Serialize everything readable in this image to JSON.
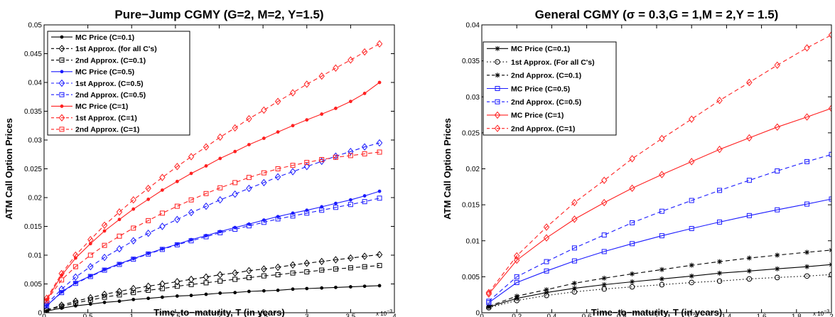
{
  "chart_data": [
    {
      "type": "line",
      "title": "Pure−Jump CGMY (G=2, M=2, Y=1.5)",
      "xlabel": "Time−to−maturity, T (in years)",
      "ylabel": "ATM Call Option Prices",
      "x_multiplier": "x 10",
      "x_multiplier_exp": "−3",
      "xlim": [
        0,
        4
      ],
      "ylim": [
        0,
        0.05
      ],
      "xticks": [
        "0",
        "0.5",
        "1",
        "1.5",
        "2",
        "2.5",
        "3",
        "3.5",
        "4"
      ],
      "yticks": [
        "0",
        "0.005",
        "0.01",
        "0.015",
        "0.02",
        "0.025",
        "0.03",
        "0.035",
        "0.04",
        "0.045",
        "0.05"
      ],
      "grid": false,
      "legend_position": "top-left",
      "x": [
        0.03,
        0.2,
        0.36,
        0.53,
        0.69,
        0.86,
        1.02,
        1.19,
        1.35,
        1.52,
        1.68,
        1.85,
        2.01,
        2.18,
        2.34,
        2.51,
        2.67,
        2.84,
        3.0,
        3.17,
        3.33,
        3.5,
        3.66,
        3.83
      ],
      "series": [
        {
          "name": "MC Price (C=0.1)",
          "color": "#000000",
          "dash": "solid",
          "marker": "dot",
          "values": [
            0.0003,
            0.0008,
            0.0012,
            0.0015,
            0.0018,
            0.002,
            0.0023,
            0.0025,
            0.0027,
            0.0029,
            0.003,
            0.0032,
            0.0034,
            0.0035,
            0.0037,
            0.0038,
            0.0039,
            0.0041,
            0.0042,
            0.0043,
            0.0044,
            0.0045,
            0.0046,
            0.0047
          ]
        },
        {
          "name": "1st Approx. (for all C's)",
          "color": "#000000",
          "dash": "dashed",
          "marker": "diamond",
          "values": [
            0.0005,
            0.0013,
            0.002,
            0.0026,
            0.0032,
            0.0037,
            0.0042,
            0.0046,
            0.005,
            0.0054,
            0.0058,
            0.0062,
            0.0066,
            0.0069,
            0.0073,
            0.0076,
            0.0079,
            0.0083,
            0.0086,
            0.0089,
            0.0092,
            0.0095,
            0.0098,
            0.0101
          ]
        },
        {
          "name": "2nd Approx. (C=0.1)",
          "color": "#000000",
          "dash": "dashed",
          "marker": "square",
          "values": [
            0.0004,
            0.0011,
            0.0017,
            0.0022,
            0.0027,
            0.0031,
            0.0035,
            0.0039,
            0.0042,
            0.0046,
            0.0049,
            0.0052,
            0.0055,
            0.0058,
            0.0061,
            0.0064,
            0.0066,
            0.0069,
            0.0071,
            0.0074,
            0.0076,
            0.0078,
            0.008,
            0.0082
          ]
        },
        {
          "name": "MC Price (C=0.5)",
          "color": "#1a1aff",
          "dash": "solid",
          "marker": "dot",
          "values": [
            0.0012,
            0.0036,
            0.0052,
            0.0064,
            0.0075,
            0.0085,
            0.0094,
            0.0103,
            0.0111,
            0.0119,
            0.0127,
            0.0134,
            0.0141,
            0.0148,
            0.0154,
            0.0161,
            0.0167,
            0.0173,
            0.0178,
            0.0184,
            0.019,
            0.0196,
            0.0203,
            0.0211
          ]
        },
        {
          "name": "1st Approx. (C=0.5)",
          "color": "#1a1aff",
          "dash": "dashed",
          "marker": "diamond",
          "values": [
            0.0015,
            0.0041,
            0.0062,
            0.008,
            0.0096,
            0.0111,
            0.0125,
            0.0138,
            0.015,
            0.0162,
            0.0174,
            0.0185,
            0.0196,
            0.0206,
            0.0216,
            0.0226,
            0.0236,
            0.0245,
            0.0254,
            0.0263,
            0.0272,
            0.028,
            0.0288,
            0.0295
          ]
        },
        {
          "name": "2nd Approx. (C=0.5)",
          "color": "#1a1aff",
          "dash": "dashed",
          "marker": "square",
          "values": [
            0.0012,
            0.0035,
            0.0051,
            0.0063,
            0.0074,
            0.0084,
            0.0093,
            0.0102,
            0.011,
            0.0118,
            0.0125,
            0.0132,
            0.0139,
            0.0145,
            0.0151,
            0.0157,
            0.0163,
            0.0168,
            0.0173,
            0.0178,
            0.0183,
            0.0188,
            0.0193,
            0.0199
          ]
        },
        {
          "name": "MC Price (C=1)",
          "color": "#ff2020",
          "dash": "solid",
          "marker": "dot",
          "values": [
            0.0022,
            0.0065,
            0.0095,
            0.012,
            0.0142,
            0.0162,
            0.018,
            0.0197,
            0.0213,
            0.0228,
            0.0242,
            0.0255,
            0.0268,
            0.028,
            0.0292,
            0.0303,
            0.0314,
            0.0325,
            0.0335,
            0.0345,
            0.0355,
            0.0367,
            0.0381,
            0.04
          ]
        },
        {
          "name": "1st Approx. (C=1)",
          "color": "#ff2020",
          "dash": "dashed",
          "marker": "diamond",
          "values": [
            0.0025,
            0.0068,
            0.01,
            0.0127,
            0.0152,
            0.0175,
            0.0196,
            0.0216,
            0.0235,
            0.0254,
            0.0271,
            0.0288,
            0.0305,
            0.0321,
            0.0337,
            0.0352,
            0.0367,
            0.0382,
            0.0397,
            0.0411,
            0.0425,
            0.0439,
            0.0453,
            0.0467
          ]
        },
        {
          "name": "2nd Approx. (C=1)",
          "color": "#ff2020",
          "dash": "dashed",
          "marker": "square",
          "values": [
            0.0021,
            0.0057,
            0.008,
            0.01,
            0.0117,
            0.0133,
            0.0147,
            0.016,
            0.0173,
            0.0185,
            0.0196,
            0.0207,
            0.0217,
            0.0226,
            0.0235,
            0.0243,
            0.025,
            0.0256,
            0.0261,
            0.0266,
            0.027,
            0.0273,
            0.0276,
            0.0279
          ]
        }
      ]
    },
    {
      "type": "line",
      "title": "General CGMY (σ = 0.3,G = 1,M = 2,Y = 1.5)",
      "xlabel": "Time−to−maturity, T (in years)",
      "ylabel": "ATM Call Option Prices",
      "x_multiplier": "x 10",
      "x_multiplier_exp": "−3",
      "xlim": [
        0,
        2
      ],
      "ylim": [
        0,
        0.04
      ],
      "xticks": [
        "0",
        "0.2",
        "0.4",
        "0.6",
        "0.8",
        "1",
        "1.2",
        "1.4",
        "1.6",
        "1.8",
        "2"
      ],
      "yticks": [
        "0",
        "0.005",
        "0.01",
        "0.015",
        "0.02",
        "0.025",
        "0.03",
        "0.035",
        "0.04"
      ],
      "grid": false,
      "legend_position": "top-left",
      "x": [
        0.04,
        0.2,
        0.37,
        0.53,
        0.7,
        0.86,
        1.03,
        1.2,
        1.36,
        1.53,
        1.69,
        1.86,
        2.0
      ],
      "series": [
        {
          "name": "MC Price (C=0.1)",
          "color": "#000000",
          "dash": "solid",
          "marker": "star",
          "values": [
            0.0008,
            0.002,
            0.0028,
            0.0034,
            0.0039,
            0.0043,
            0.0047,
            0.0051,
            0.0055,
            0.0058,
            0.0061,
            0.0064,
            0.0067
          ]
        },
        {
          "name": "1st Approx. (For all C's)",
          "color": "#000000",
          "dash": "dotted",
          "marker": "circle",
          "values": [
            0.0007,
            0.0017,
            0.0024,
            0.0029,
            0.0033,
            0.0036,
            0.0039,
            0.0042,
            0.0044,
            0.0047,
            0.0049,
            0.0051,
            0.0053
          ]
        },
        {
          "name": "2nd Approx. (C=0.1)",
          "color": "#000000",
          "dash": "dashed",
          "marker": "star",
          "values": [
            0.0009,
            0.0023,
            0.0032,
            0.0041,
            0.0048,
            0.0054,
            0.006,
            0.0066,
            0.0071,
            0.0076,
            0.008,
            0.0084,
            0.0087
          ]
        },
        {
          "name": "MC Price (C=0.5)",
          "color": "#1a1aff",
          "dash": "solid",
          "marker": "square",
          "values": [
            0.0014,
            0.0042,
            0.0058,
            0.0072,
            0.0085,
            0.0096,
            0.0107,
            0.0117,
            0.0126,
            0.0135,
            0.0143,
            0.0151,
            0.0158
          ]
        },
        {
          "name": "2nd Approx. (C=0.5)",
          "color": "#1a1aff",
          "dash": "dashed",
          "marker": "square",
          "values": [
            0.0016,
            0.005,
            0.0071,
            0.009,
            0.0108,
            0.0125,
            0.0141,
            0.0156,
            0.017,
            0.0184,
            0.0197,
            0.021,
            0.022
          ]
        },
        {
          "name": "MC Price (C=1)",
          "color": "#ff2020",
          "dash": "solid",
          "marker": "diamond",
          "values": [
            0.0026,
            0.0073,
            0.0104,
            0.013,
            0.0153,
            0.0173,
            0.0192,
            0.021,
            0.0227,
            0.0243,
            0.0258,
            0.0272,
            0.0284
          ]
        },
        {
          "name": "2nd Approx. (C=1)",
          "color": "#ff2020",
          "dash": "dashed",
          "marker": "diamond",
          "values": [
            0.0028,
            0.0079,
            0.0119,
            0.0153,
            0.0184,
            0.0214,
            0.0242,
            0.0269,
            0.0295,
            0.032,
            0.0344,
            0.0368,
            0.0386
          ]
        }
      ]
    }
  ]
}
